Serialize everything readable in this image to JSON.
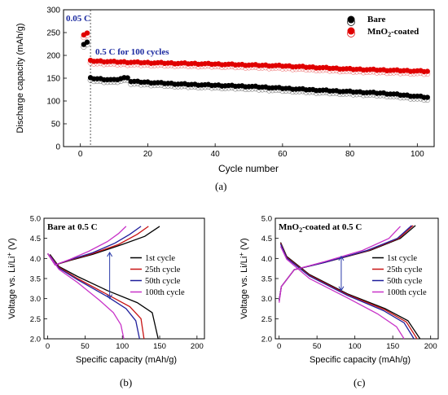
{
  "chart_data": [
    {
      "id": "a",
      "type": "scatter",
      "panel_label": "(a)",
      "xlabel": "Cycle  number",
      "ylabel": "Discharge capacity (mAh/g)",
      "xlim": [
        -5,
        105
      ],
      "ylim": [
        0,
        300
      ],
      "xticks": [
        0,
        20,
        40,
        60,
        80,
        100
      ],
      "yticks": [
        0,
        50,
        100,
        150,
        200,
        250,
        300
      ],
      "marker_line_x": 3,
      "annotations": [
        "0.05 C",
        "0.5 C for 100 cycles"
      ],
      "legend": {
        "placement": "top-right",
        "entries": [
          "Bare",
          "MnO2-coated"
        ]
      },
      "series": [
        {
          "name": "Bare",
          "color": "#000000",
          "initial_points": [
            [
              1,
              224
            ],
            [
              2,
              229
            ]
          ],
          "x_range": [
            3,
            103
          ],
          "y_profile": [
            [
              3,
              150
            ],
            [
              10,
              146
            ],
            [
              14,
              152
            ],
            [
              15,
              143
            ],
            [
              30,
              137
            ],
            [
              50,
              132
            ],
            [
              70,
              124
            ],
            [
              90,
              117
            ],
            [
              103,
              108
            ]
          ]
        },
        {
          "name": "MnO2-coated",
          "color": "#e00000",
          "initial_points": [
            [
              1,
              245
            ],
            [
              2,
              249
            ]
          ],
          "x_range": [
            3,
            103
          ],
          "y_profile": [
            [
              3,
              188
            ],
            [
              10,
              186
            ],
            [
              20,
              184
            ],
            [
              40,
              181
            ],
            [
              60,
              177
            ],
            [
              80,
              170
            ],
            [
              103,
              165
            ]
          ]
        }
      ]
    },
    {
      "id": "b",
      "type": "line",
      "panel_label": "(b)",
      "title": "Bare at 0.5 C",
      "xlabel": "Specific capacity (mAh/g)",
      "ylabel": "Voltage vs. Li/Li+ (V)",
      "xlim": [
        -5,
        210
      ],
      "ylim": [
        2.0,
        5.0
      ],
      "xticks": [
        0,
        50,
        100,
        150,
        200
      ],
      "yticks": [
        2.0,
        2.5,
        3.0,
        3.5,
        4.0,
        4.5,
        5.0
      ],
      "series": [
        {
          "name": "1st cycle",
          "color": "#000000",
          "charge": [
            [
              0,
              4.12
            ],
            [
              10,
              3.84
            ],
            [
              30,
              3.95
            ],
            [
              60,
              4.1
            ],
            [
              100,
              4.35
            ],
            [
              130,
              4.55
            ],
            [
              150,
              4.8
            ]
          ],
          "discharge": [
            [
              3,
              4.1
            ],
            [
              15,
              3.8
            ],
            [
              40,
              3.55
            ],
            [
              80,
              3.2
            ],
            [
              120,
              2.9
            ],
            [
              140,
              2.65
            ],
            [
              148,
              2.0
            ]
          ]
        },
        {
          "name": "25th cycle",
          "color": "#c81414",
          "charge": [
            [
              0,
              4.12
            ],
            [
              10,
              3.84
            ],
            [
              30,
              3.96
            ],
            [
              60,
              4.12
            ],
            [
              95,
              4.35
            ],
            [
              120,
              4.6
            ],
            [
              135,
              4.8
            ]
          ],
          "discharge": [
            [
              3,
              4.08
            ],
            [
              15,
              3.78
            ],
            [
              40,
              3.5
            ],
            [
              80,
              3.1
            ],
            [
              110,
              2.8
            ],
            [
              125,
              2.5
            ],
            [
              129,
              2.0
            ]
          ]
        },
        {
          "name": "50th cycle",
          "color": "#1e1e9b",
          "charge": [
            [
              0,
              4.12
            ],
            [
              10,
              3.84
            ],
            [
              30,
              3.97
            ],
            [
              60,
              4.14
            ],
            [
              90,
              4.38
            ],
            [
              110,
              4.6
            ],
            [
              125,
              4.8
            ]
          ],
          "discharge": [
            [
              3,
              4.07
            ],
            [
              15,
              3.76
            ],
            [
              40,
              3.47
            ],
            [
              80,
              3.05
            ],
            [
              105,
              2.75
            ],
            [
              118,
              2.45
            ],
            [
              123,
              2.0
            ]
          ]
        },
        {
          "name": "100th cycle",
          "color": "#c832c8",
          "charge": [
            [
              0,
              4.12
            ],
            [
              10,
              3.84
            ],
            [
              30,
              3.98
            ],
            [
              55,
              4.18
            ],
            [
              80,
              4.42
            ],
            [
              95,
              4.62
            ],
            [
              105,
              4.8
            ]
          ],
          "discharge": [
            [
              3,
              4.05
            ],
            [
              15,
              3.73
            ],
            [
              40,
              3.4
            ],
            [
              70,
              2.95
            ],
            [
              88,
              2.65
            ],
            [
              98,
              2.35
            ],
            [
              102,
              2.0
            ]
          ]
        }
      ],
      "arrow": {
        "x": 83,
        "from_y": 4.15,
        "to_y": 3.0
      }
    },
    {
      "id": "c",
      "type": "line",
      "panel_label": "(c)",
      "title": "MnO2-coated  at 0.5 C",
      "xlabel": "Specific capacity (mAh/g)",
      "ylabel": "Voltage vs. Li/Li+ (V)",
      "xlim": [
        -5,
        210
      ],
      "ylim": [
        2.0,
        5.0
      ],
      "xticks": [
        0,
        50,
        100,
        150,
        200
      ],
      "yticks": [
        2.0,
        2.5,
        3.0,
        3.5,
        4.0,
        4.5,
        5.0
      ],
      "series": [
        {
          "name": "1st cycle",
          "color": "#000000",
          "charge": [
            [
              0,
              2.95
            ],
            [
              3,
              3.3
            ],
            [
              20,
              3.72
            ],
            [
              60,
              3.9
            ],
            [
              120,
              4.2
            ],
            [
              160,
              4.5
            ],
            [
              180,
              4.82
            ]
          ],
          "discharge": [
            [
              2,
              4.4
            ],
            [
              10,
              4.05
            ],
            [
              40,
              3.6
            ],
            [
              90,
              3.12
            ],
            [
              140,
              2.75
            ],
            [
              170,
              2.45
            ],
            [
              186,
              2.0
            ]
          ]
        },
        {
          "name": "25th cycle",
          "color": "#c81414",
          "charge": [
            [
              0,
              2.95
            ],
            [
              3,
              3.3
            ],
            [
              20,
              3.72
            ],
            [
              60,
              3.9
            ],
            [
              118,
              4.2
            ],
            [
              158,
              4.5
            ],
            [
              177,
              4.82
            ]
          ],
          "discharge": [
            [
              2,
              4.38
            ],
            [
              10,
              4.03
            ],
            [
              40,
              3.58
            ],
            [
              90,
              3.1
            ],
            [
              140,
              2.72
            ],
            [
              168,
              2.42
            ],
            [
              182,
              2.0
            ]
          ]
        },
        {
          "name": "50th cycle",
          "color": "#1e1e9b",
          "charge": [
            [
              0,
              2.95
            ],
            [
              3,
              3.3
            ],
            [
              20,
              3.72
            ],
            [
              60,
              3.9
            ],
            [
              116,
              4.2
            ],
            [
              156,
              4.5
            ],
            [
              175,
              4.82
            ]
          ],
          "discharge": [
            [
              2,
              4.36
            ],
            [
              10,
              4.01
            ],
            [
              40,
              3.56
            ],
            [
              90,
              3.08
            ],
            [
              138,
              2.7
            ],
            [
              165,
              2.4
            ],
            [
              178,
              2.0
            ]
          ]
        },
        {
          "name": "100th cycle",
          "color": "#c832c8",
          "charge": [
            [
              0,
              2.9
            ],
            [
              3,
              3.3
            ],
            [
              20,
              3.72
            ],
            [
              60,
              3.92
            ],
            [
              110,
              4.2
            ],
            [
              145,
              4.5
            ],
            [
              160,
              4.8
            ]
          ],
          "discharge": [
            [
              2,
              4.3
            ],
            [
              10,
              3.98
            ],
            [
              40,
              3.5
            ],
            [
              90,
              3.02
            ],
            [
              130,
              2.62
            ],
            [
              155,
              2.3
            ],
            [
              165,
              2.0
            ]
          ]
        }
      ],
      "arrow": {
        "x": 82,
        "from_y": 4.05,
        "to_y": 3.2
      }
    }
  ]
}
